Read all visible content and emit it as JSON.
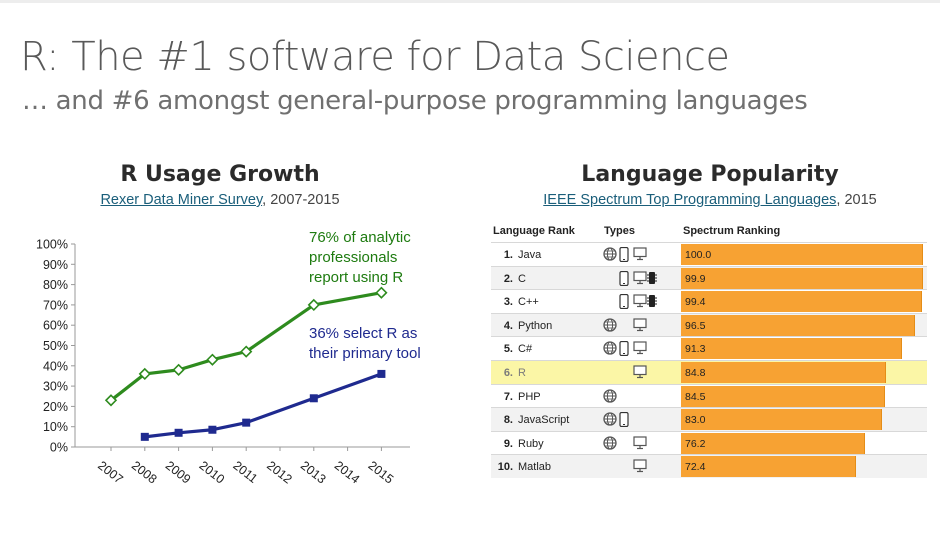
{
  "slide": {
    "title": "R: The #1 software for Data Science",
    "subtitle": "… and #6 amongst general-purpose programming languages"
  },
  "left_panel": {
    "title": "R Usage Growth",
    "source_link": "Rexer Data Miner Survey",
    "source_suffix": ", 2007-2015"
  },
  "right_panel": {
    "title": "Language Popularity",
    "source_link": "IEEE Spectrum Top Programming Languages",
    "source_suffix": ", 2015"
  },
  "chart_data": [
    {
      "type": "line",
      "title": "R Usage Growth",
      "x": [
        "2007",
        "2008",
        "2009",
        "2010",
        "2011",
        "2012",
        "2013",
        "2014",
        "2015"
      ],
      "ylim": [
        0,
        100
      ],
      "y_ticks": [
        "0%",
        "10%",
        "20%",
        "30%",
        "40%",
        "50%",
        "60%",
        "70%",
        "80%",
        "90%",
        "100%"
      ],
      "grid": false,
      "series": [
        {
          "name": "Using R",
          "color": "#2e8b1e",
          "marker": "diamond",
          "points": [
            {
              "x": "2007",
              "y": 23
            },
            {
              "x": "2008",
              "y": 36
            },
            {
              "x": "2009",
              "y": 38
            },
            {
              "x": "2010",
              "y": 43
            },
            {
              "x": "2011",
              "y": 47
            },
            {
              "x": "2013",
              "y": 70
            },
            {
              "x": "2015",
              "y": 76
            }
          ]
        },
        {
          "name": "R as primary tool",
          "color": "#1f2a8f",
          "marker": "square",
          "points": [
            {
              "x": "2008",
              "y": 5
            },
            {
              "x": "2009",
              "y": 7
            },
            {
              "x": "2010",
              "y": 8.5
            },
            {
              "x": "2011",
              "y": 12
            },
            {
              "x": "2013",
              "y": 24
            },
            {
              "x": "2015",
              "y": 36
            }
          ]
        }
      ],
      "annotations": [
        {
          "lines": [
            "76% of analytic",
            "professionals",
            "report using R"
          ],
          "color": "#1e7b10"
        },
        {
          "lines": [
            "36% select R as",
            "their primary tool"
          ],
          "color": "#1f2a8f"
        }
      ]
    },
    {
      "type": "table",
      "title": "Language Popularity",
      "columns": [
        "Language Rank",
        "Types",
        "Spectrum Ranking"
      ],
      "max_value": 100,
      "rows": [
        {
          "rank": "1.",
          "language": "Java",
          "value": 100.0,
          "label": "100.0",
          "types": [
            "web",
            "mobile",
            "desktop"
          ]
        },
        {
          "rank": "2.",
          "language": "C",
          "value": 99.9,
          "label": "99.9",
          "types": [
            "mobile",
            "desktop",
            "embedded"
          ]
        },
        {
          "rank": "3.",
          "language": "C++",
          "value": 99.4,
          "label": "99.4",
          "types": [
            "mobile",
            "desktop",
            "embedded"
          ]
        },
        {
          "rank": "4.",
          "language": "Python",
          "value": 96.5,
          "label": "96.5",
          "types": [
            "web",
            "desktop"
          ]
        },
        {
          "rank": "5.",
          "language": "C#",
          "value": 91.3,
          "label": "91.3",
          "types": [
            "web",
            "mobile",
            "desktop"
          ]
        },
        {
          "rank": "6.",
          "language": "R",
          "value": 84.8,
          "label": "84.8",
          "types": [
            "desktop"
          ],
          "highlight": true
        },
        {
          "rank": "7.",
          "language": "PHP",
          "value": 84.5,
          "label": "84.5",
          "types": [
            "web"
          ]
        },
        {
          "rank": "8.",
          "language": "JavaScript",
          "value": 83.0,
          "label": "83.0",
          "types": [
            "web",
            "mobile"
          ]
        },
        {
          "rank": "9.",
          "language": "Ruby",
          "value": 76.2,
          "label": "76.2",
          "types": [
            "web",
            "desktop"
          ]
        },
        {
          "rank": "10.",
          "language": "Matlab",
          "value": 72.4,
          "label": "72.4",
          "types": [
            "desktop"
          ]
        }
      ],
      "colors": {
        "bar": "#f7a233",
        "highlight": "#fbf6a6"
      }
    }
  ]
}
